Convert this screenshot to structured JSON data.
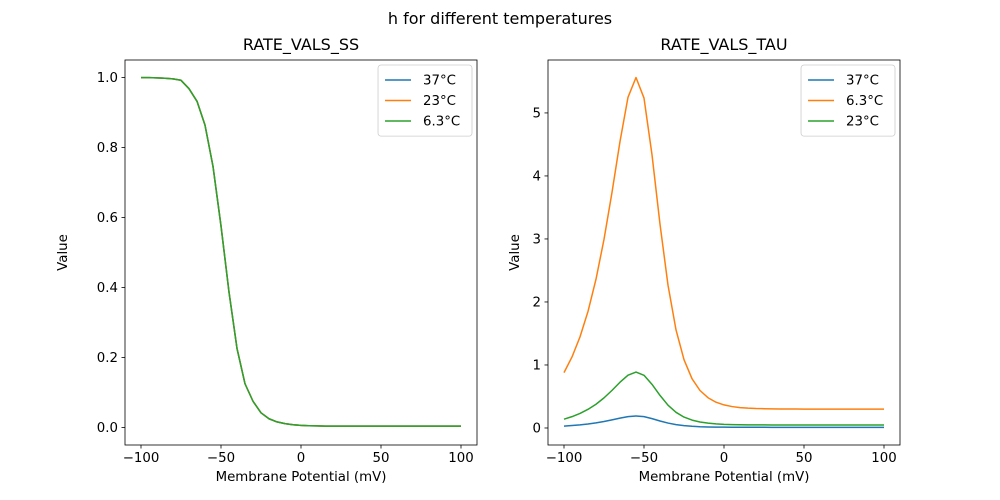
{
  "figure": {
    "suptitle": "h for different temperatures",
    "background": "#ffffff",
    "text_color": "#000000",
    "spine_color": "#000000"
  },
  "palette": {
    "blue": "#1f77b4",
    "orange": "#ff7f0e",
    "green": "#2ca02c",
    "legend_border": "#cccccc"
  },
  "chart_data": [
    {
      "type": "line",
      "title": "RATE_VALS_SS",
      "xlabel": "Membrane Potential (mV)",
      "ylabel": "Value",
      "grid": false,
      "legend_loc": "upper right",
      "xlim": [
        -110,
        110
      ],
      "ylim": [
        -0.05,
        1.05
      ],
      "xtick_values": [
        -100,
        -50,
        0,
        50,
        100
      ],
      "xtick_labels": [
        "−100",
        "−50",
        "0",
        "50",
        "100"
      ],
      "ytick_values": [
        0.0,
        0.2,
        0.4,
        0.6,
        0.8,
        1.0
      ],
      "ytick_labels": [
        "0.0",
        "0.2",
        "0.4",
        "0.6",
        "0.8",
        "1.0"
      ],
      "x": [
        -100,
        -95,
        -90,
        -85,
        -80,
        -75,
        -70,
        -65,
        -60,
        -55,
        -50,
        -45,
        -40,
        -35,
        -30,
        -25,
        -20,
        -15,
        -10,
        -5,
        0,
        5,
        10,
        15,
        20,
        25,
        30,
        35,
        40,
        45,
        50,
        55,
        60,
        65,
        70,
        75,
        80,
        85,
        90,
        95,
        100
      ],
      "series": [
        {
          "name": "37°C",
          "color": "#1f77b4",
          "values": [
            0.9997,
            0.9995,
            0.999,
            0.998,
            0.996,
            0.992,
            0.968,
            0.932,
            0.864,
            0.746,
            0.576,
            0.387,
            0.226,
            0.125,
            0.075,
            0.042,
            0.025,
            0.016,
            0.011,
            0.008,
            0.006,
            0.005,
            0.0045,
            0.004,
            0.004,
            0.004,
            0.004,
            0.004,
            0.004,
            0.004,
            0.004,
            0.004,
            0.004,
            0.004,
            0.004,
            0.004,
            0.004,
            0.004,
            0.004,
            0.004,
            0.004
          ]
        },
        {
          "name": "23°C",
          "color": "#ff7f0e",
          "values": [
            0.9997,
            0.9995,
            0.999,
            0.998,
            0.996,
            0.992,
            0.968,
            0.932,
            0.864,
            0.746,
            0.576,
            0.387,
            0.226,
            0.125,
            0.075,
            0.042,
            0.025,
            0.016,
            0.011,
            0.008,
            0.006,
            0.005,
            0.0045,
            0.004,
            0.004,
            0.004,
            0.004,
            0.004,
            0.004,
            0.004,
            0.004,
            0.004,
            0.004,
            0.004,
            0.004,
            0.004,
            0.004,
            0.004,
            0.004,
            0.004,
            0.004
          ]
        },
        {
          "name": "6.3°C",
          "color": "#2ca02c",
          "values": [
            0.9997,
            0.9995,
            0.999,
            0.998,
            0.996,
            0.992,
            0.968,
            0.932,
            0.864,
            0.746,
            0.576,
            0.387,
            0.226,
            0.125,
            0.075,
            0.042,
            0.025,
            0.016,
            0.011,
            0.008,
            0.006,
            0.005,
            0.0045,
            0.004,
            0.004,
            0.004,
            0.004,
            0.004,
            0.004,
            0.004,
            0.004,
            0.004,
            0.004,
            0.004,
            0.004,
            0.004,
            0.004,
            0.004,
            0.004,
            0.004,
            0.004
          ]
        }
      ]
    },
    {
      "type": "line",
      "title": "RATE_VALS_TAU",
      "xlabel": "Membrane Potential (mV)",
      "ylabel": "Value",
      "grid": false,
      "legend_loc": "upper right",
      "xlim": [
        -110,
        110
      ],
      "ylim": [
        -0.27,
        5.84
      ],
      "xtick_values": [
        -100,
        -50,
        0,
        50,
        100
      ],
      "xtick_labels": [
        "−100",
        "−50",
        "0",
        "50",
        "100"
      ],
      "ytick_values": [
        0,
        1,
        2,
        3,
        4,
        5
      ],
      "ytick_labels": [
        "0",
        "1",
        "2",
        "3",
        "4",
        "5"
      ],
      "x": [
        -100,
        -95,
        -90,
        -85,
        -80,
        -75,
        -70,
        -65,
        -60,
        -55,
        -50,
        -45,
        -40,
        -35,
        -30,
        -25,
        -20,
        -15,
        -10,
        -5,
        0,
        5,
        10,
        15,
        20,
        25,
        30,
        35,
        40,
        45,
        50,
        55,
        60,
        65,
        70,
        75,
        80,
        85,
        90,
        95,
        100
      ],
      "series": [
        {
          "name": "37°C",
          "color": "#1f77b4",
          "values": [
            0.03,
            0.039,
            0.05,
            0.064,
            0.081,
            0.103,
            0.129,
            0.156,
            0.18,
            0.191,
            0.18,
            0.149,
            0.111,
            0.078,
            0.054,
            0.037,
            0.027,
            0.02,
            0.016,
            0.014,
            0.013,
            0.012,
            0.011,
            0.011,
            0.011,
            0.011,
            0.01,
            0.01,
            0.01,
            0.01,
            0.01,
            0.01,
            0.01,
            0.01,
            0.01,
            0.01,
            0.01,
            0.01,
            0.01,
            0.01,
            0.01
          ]
        },
        {
          "name": "6.3°C",
          "color": "#ff7f0e",
          "values": [
            0.879,
            1.127,
            1.446,
            1.85,
            2.361,
            2.993,
            3.74,
            4.546,
            5.248,
            5.562,
            5.236,
            4.336,
            3.234,
            2.267,
            1.558,
            1.084,
            0.782,
            0.595,
            0.48,
            0.409,
            0.366,
            0.34,
            0.324,
            0.315,
            0.309,
            0.306,
            0.303,
            0.302,
            0.301,
            0.301,
            0.3,
            0.3,
            0.3,
            0.3,
            0.3,
            0.3,
            0.3,
            0.3,
            0.3,
            0.3,
            0.3
          ]
        },
        {
          "name": "23°C",
          "color": "#2ca02c",
          "values": [
            0.14,
            0.18,
            0.231,
            0.296,
            0.377,
            0.478,
            0.597,
            0.726,
            0.838,
            0.888,
            0.836,
            0.693,
            0.517,
            0.362,
            0.249,
            0.173,
            0.125,
            0.095,
            0.077,
            0.065,
            0.058,
            0.054,
            0.052,
            0.05,
            0.049,
            0.049,
            0.048,
            0.048,
            0.048,
            0.048,
            0.048,
            0.048,
            0.048,
            0.048,
            0.048,
            0.048,
            0.048,
            0.048,
            0.048,
            0.048,
            0.048
          ]
        }
      ]
    }
  ]
}
